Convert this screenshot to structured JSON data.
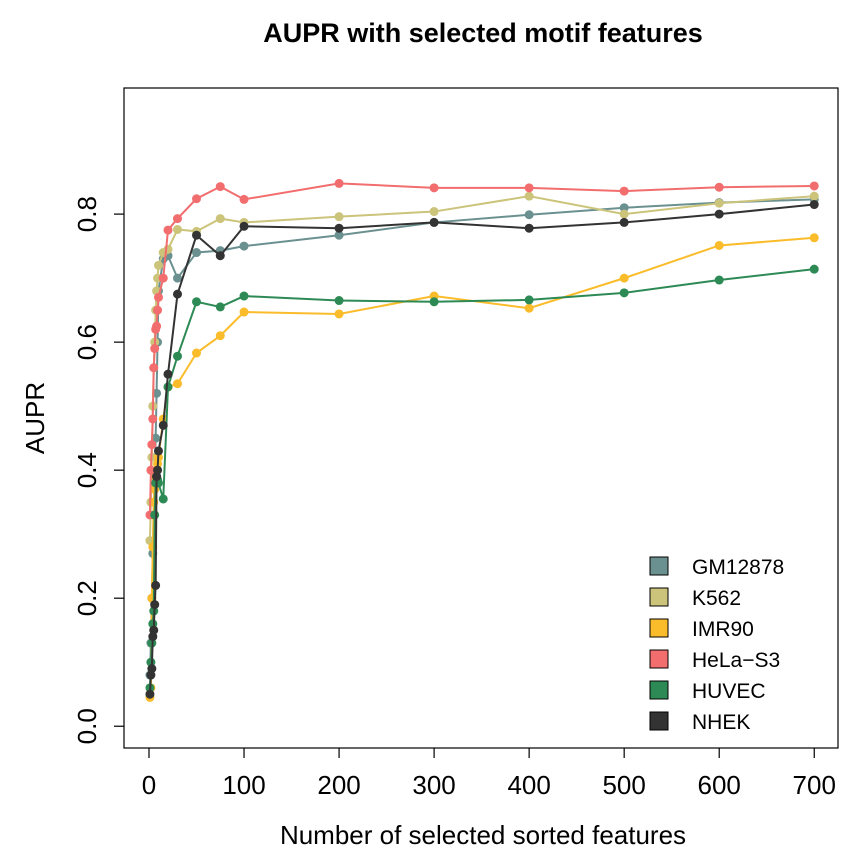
{
  "chart_data": {
    "type": "line",
    "title": "AUPR with selected motif features",
    "x_label": "Number of selected sorted features",
    "y_label": "AUPR",
    "x": [
      1,
      2,
      3,
      4,
      5,
      6,
      7,
      8,
      9,
      10,
      15,
      20,
      30,
      50,
      75,
      100,
      200,
      300,
      400,
      500,
      600,
      700
    ],
    "series": [
      {
        "name": "GM12878",
        "color": "#6b9090",
        "values": [
          0.08,
          0.13,
          0.2,
          0.27,
          0.33,
          0.39,
          0.45,
          0.52,
          0.6,
          0.68,
          0.73,
          0.735,
          0.7,
          0.74,
          0.743,
          0.75,
          0.767,
          0.787,
          0.799,
          0.81,
          0.818,
          0.823
        ]
      },
      {
        "name": "K562",
        "color": "#cbc47a",
        "values": [
          0.29,
          0.35,
          0.42,
          0.5,
          0.56,
          0.6,
          0.65,
          0.68,
          0.7,
          0.72,
          0.74,
          0.745,
          0.776,
          0.773,
          0.793,
          0.787,
          0.796,
          0.804,
          0.828,
          0.8,
          0.817,
          0.828
        ]
      },
      {
        "name": "IMR90",
        "color": "#fbbc2c",
        "values": [
          0.045,
          0.06,
          0.2,
          0.28,
          0.35,
          0.37,
          0.39,
          0.4,
          0.41,
          0.42,
          0.48,
          0.53,
          0.535,
          0.583,
          0.61,
          0.647,
          0.644,
          0.672,
          0.653,
          0.7,
          0.751,
          0.763
        ]
      },
      {
        "name": "HeLa−S3",
        "color": "#f26d6d",
        "values": [
          0.33,
          0.4,
          0.44,
          0.48,
          0.56,
          0.59,
          0.62,
          0.625,
          0.65,
          0.67,
          0.7,
          0.775,
          0.793,
          0.824,
          0.843,
          0.823,
          0.848,
          0.841,
          0.841,
          0.836,
          0.842,
          0.844
        ]
      },
      {
        "name": "HUVEC",
        "color": "#2e8a55",
        "values": [
          0.06,
          0.1,
          0.13,
          0.16,
          0.18,
          0.33,
          0.38,
          0.39,
          0.385,
          0.38,
          0.355,
          0.53,
          0.578,
          0.663,
          0.655,
          0.672,
          0.665,
          0.663,
          0.666,
          0.677,
          0.697,
          0.714
        ]
      },
      {
        "name": "NHEK",
        "color": "#333333",
        "values": [
          0.05,
          0.08,
          0.09,
          0.14,
          0.15,
          0.19,
          0.22,
          0.39,
          0.4,
          0.43,
          0.47,
          0.55,
          0.675,
          0.767,
          0.735,
          0.781,
          0.778,
          0.787,
          0.778,
          0.787,
          0.8,
          0.815
        ]
      }
    ],
    "xlim": [
      -26.3,
      725
    ],
    "ylim": [
      -0.034,
      0.997
    ],
    "xticks": [
      0,
      100,
      200,
      300,
      400,
      500,
      600,
      700
    ],
    "yticks": [
      {
        "value": 0,
        "label": "0.0"
      },
      0.2,
      0.4,
      0.6,
      0.8
    ],
    "legend_position": "bottom-right"
  }
}
